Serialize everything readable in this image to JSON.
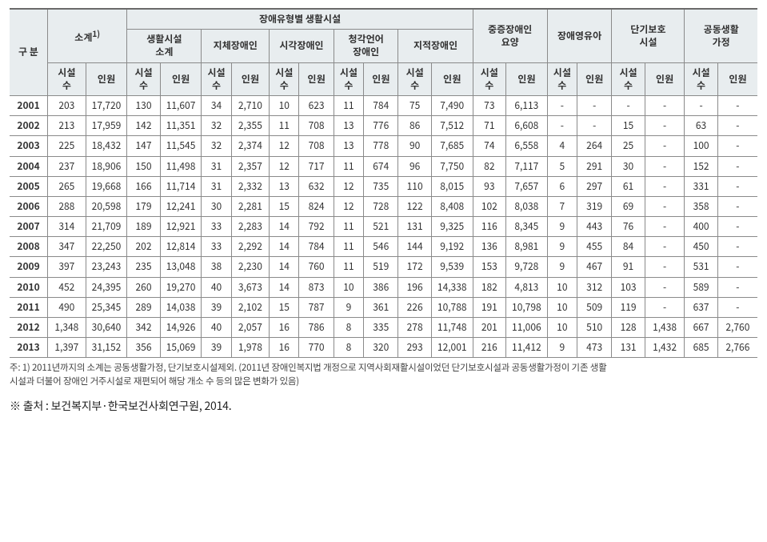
{
  "header": {
    "top": {
      "gubun": "구 분",
      "sogye": "소계<sup>1)</sup>",
      "byType": "장애유형별 생활시설",
      "severe": "중증장애인\n요양",
      "infant": "장애영유아",
      "short": "단기보호\n시설",
      "group": "공동생활\n가정"
    },
    "mid": {
      "living": "생활시설\n소계",
      "physical": "지체장애인",
      "visual": "시각장애인",
      "hearing": "청각언어\n장애인",
      "intellect": "지적장애인"
    },
    "sub": {
      "fac": "시설\n수",
      "ppl": "인원"
    }
  },
  "rows": [
    {
      "y": "2001",
      "v": [
        "203",
        "17,720",
        "130",
        "11,607",
        "34",
        "2,710",
        "10",
        "623",
        "11",
        "784",
        "75",
        "7,490",
        "73",
        "6,113",
        "-",
        "-",
        "-",
        "-",
        "-",
        "-"
      ]
    },
    {
      "y": "2002",
      "v": [
        "213",
        "17,959",
        "142",
        "11,351",
        "32",
        "2,355",
        "11",
        "708",
        "13",
        "776",
        "86",
        "7,512",
        "71",
        "6,608",
        "-",
        "-",
        "15",
        "-",
        "63",
        "-"
      ]
    },
    {
      "y": "2003",
      "v": [
        "225",
        "18,432",
        "147",
        "11,545",
        "32",
        "2,374",
        "12",
        "708",
        "13",
        "778",
        "90",
        "7,685",
        "74",
        "6,558",
        "4",
        "264",
        "25",
        "-",
        "100",
        "-"
      ]
    },
    {
      "y": "2004",
      "v": [
        "237",
        "18,906",
        "150",
        "11,498",
        "31",
        "2,357",
        "12",
        "717",
        "11",
        "674",
        "96",
        "7,750",
        "82",
        "7,117",
        "5",
        "291",
        "30",
        "-",
        "152",
        "-"
      ]
    },
    {
      "y": "2005",
      "v": [
        "265",
        "19,668",
        "166",
        "11,714",
        "31",
        "2,332",
        "13",
        "632",
        "12",
        "735",
        "110",
        "8,015",
        "93",
        "7,657",
        "6",
        "297",
        "61",
        "-",
        "331",
        "-"
      ]
    },
    {
      "y": "2006",
      "v": [
        "288",
        "20,598",
        "179",
        "12,241",
        "30",
        "2,281",
        "15",
        "824",
        "12",
        "728",
        "122",
        "8,408",
        "102",
        "8,038",
        "7",
        "319",
        "69",
        "-",
        "358",
        "-"
      ]
    },
    {
      "y": "2007",
      "v": [
        "314",
        "21,709",
        "189",
        "12,921",
        "33",
        "2,283",
        "14",
        "792",
        "11",
        "521",
        "131",
        "9,325",
        "116",
        "8,345",
        "9",
        "443",
        "76",
        "-",
        "400",
        "-"
      ]
    },
    {
      "y": "2008",
      "v": [
        "347",
        "22,250",
        "202",
        "12,814",
        "33",
        "2,292",
        "14",
        "784",
        "11",
        "546",
        "144",
        "9,192",
        "136",
        "8,981",
        "9",
        "455",
        "84",
        "-",
        "450",
        "-"
      ]
    },
    {
      "y": "2009",
      "v": [
        "397",
        "23,243",
        "235",
        "13,048",
        "38",
        "2,230",
        "14",
        "760",
        "11",
        "519",
        "172",
        "9,539",
        "153",
        "9,728",
        "9",
        "467",
        "91",
        "-",
        "531",
        "-"
      ]
    },
    {
      "y": "2010",
      "v": [
        "452",
        "24,395",
        "260",
        "19,270",
        "40",
        "3,673",
        "14",
        "873",
        "10",
        "386",
        "196",
        "14,338",
        "182",
        "4,813",
        "10",
        "312",
        "103",
        "-",
        "589",
        "-"
      ]
    },
    {
      "y": "2011",
      "v": [
        "490",
        "25,345",
        "289",
        "14,038",
        "39",
        "2,102",
        "15",
        "787",
        "9",
        "361",
        "226",
        "10,788",
        "191",
        "10,798",
        "10",
        "509",
        "119",
        "-",
        "637",
        "-"
      ]
    },
    {
      "y": "2012",
      "v": [
        "1,348",
        "30,640",
        "342",
        "14,926",
        "40",
        "2,057",
        "16",
        "786",
        "8",
        "335",
        "278",
        "11,748",
        "201",
        "11,006",
        "10",
        "510",
        "128",
        "1,438",
        "667",
        "2,760"
      ]
    },
    {
      "y": "2013",
      "v": [
        "1,397",
        "31,152",
        "356",
        "15,069",
        "39",
        "1,978",
        "16",
        "770",
        "8",
        "320",
        "293",
        "12,001",
        "216",
        "11,412",
        "9",
        "473",
        "131",
        "1,432",
        "685",
        "2,766"
      ]
    }
  ],
  "footnote": "주: 1) 2011년까지의 소계는 공동생활가정, 단기보호시설제외. (2011년 장애인복지법 개정으로 지역사회재활시설이었던 단기보호시설과 공동생활가정이 기존 생활\n시설과 더불어 장애인 거주시설로 재편되어 해당 개소 수 등의 많은 변화가 있음)",
  "source": "※ 출처 : 보건복지부·한국보건사회연구원, 2014.",
  "style": {
    "header_bg": "#e8edef",
    "border": "#8a8a8a",
    "font_body": 12,
    "font_footnote": 11.5,
    "font_source": 14
  }
}
